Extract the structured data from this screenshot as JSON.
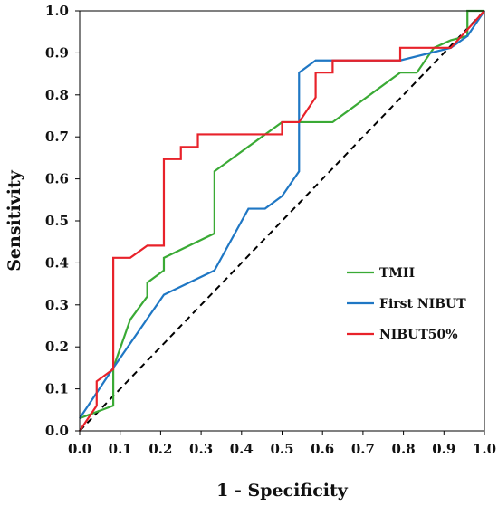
{
  "chart_data": {
    "type": "line",
    "title": "",
    "xlabel": "1 - Specificity",
    "ylabel": "Sensitivity",
    "xlim": [
      0.0,
      1.0
    ],
    "ylim": [
      0.0,
      1.0
    ],
    "xticks": [
      "0.0",
      "0.1",
      "0.2",
      "0.3",
      "0.4",
      "0.5",
      "0.6",
      "0.7",
      "0.8",
      "0.9",
      "1.0"
    ],
    "yticks": [
      "0.0",
      "0.1",
      "0.2",
      "0.3",
      "0.4",
      "0.5",
      "0.6",
      "0.7",
      "0.8",
      "0.9",
      "1.0"
    ],
    "grid": false,
    "legend": {
      "placement": "right-middle"
    },
    "reference_line": {
      "style": "dashed",
      "color": "#000000",
      "x": [
        0,
        1
      ],
      "y": [
        0,
        1
      ]
    },
    "series": [
      {
        "name": "TMH",
        "color": "#3aaa35",
        "x": [
          0.0,
          0.083,
          0.083,
          0.125,
          0.167,
          0.167,
          0.208,
          0.208,
          0.333,
          0.333,
          0.5,
          0.625,
          0.792,
          0.833,
          0.875,
          0.917,
          0.958,
          0.958,
          1.0
        ],
        "y": [
          0.03,
          0.06,
          0.15,
          0.265,
          0.32,
          0.353,
          0.382,
          0.412,
          0.47,
          0.618,
          0.735,
          0.735,
          0.853,
          0.853,
          0.912,
          0.93,
          0.94,
          1.0,
          1.0
        ]
      },
      {
        "name": "First NIBUT",
        "color": "#1f77c4",
        "x": [
          0.0,
          0.083,
          0.208,
          0.333,
          0.417,
          0.458,
          0.5,
          0.542,
          0.542,
          0.583,
          0.625,
          0.792,
          0.917,
          0.958,
          1.0
        ],
        "y": [
          0.03,
          0.15,
          0.324,
          0.382,
          0.529,
          0.529,
          0.559,
          0.618,
          0.853,
          0.882,
          0.882,
          0.882,
          0.912,
          0.94,
          1.0
        ]
      },
      {
        "name": "NIBUT50%",
        "color": "#e8222a",
        "x": [
          0.0,
          0.042,
          0.042,
          0.083,
          0.083,
          0.125,
          0.167,
          0.208,
          0.208,
          0.25,
          0.25,
          0.292,
          0.292,
          0.5,
          0.5,
          0.542,
          0.583,
          0.583,
          0.625,
          0.625,
          0.792,
          0.792,
          0.917,
          1.0
        ],
        "y": [
          0.0,
          0.06,
          0.118,
          0.147,
          0.412,
          0.412,
          0.441,
          0.441,
          0.647,
          0.647,
          0.676,
          0.676,
          0.706,
          0.706,
          0.735,
          0.735,
          0.794,
          0.853,
          0.853,
          0.882,
          0.882,
          0.912,
          0.912,
          1.0
        ]
      }
    ]
  }
}
